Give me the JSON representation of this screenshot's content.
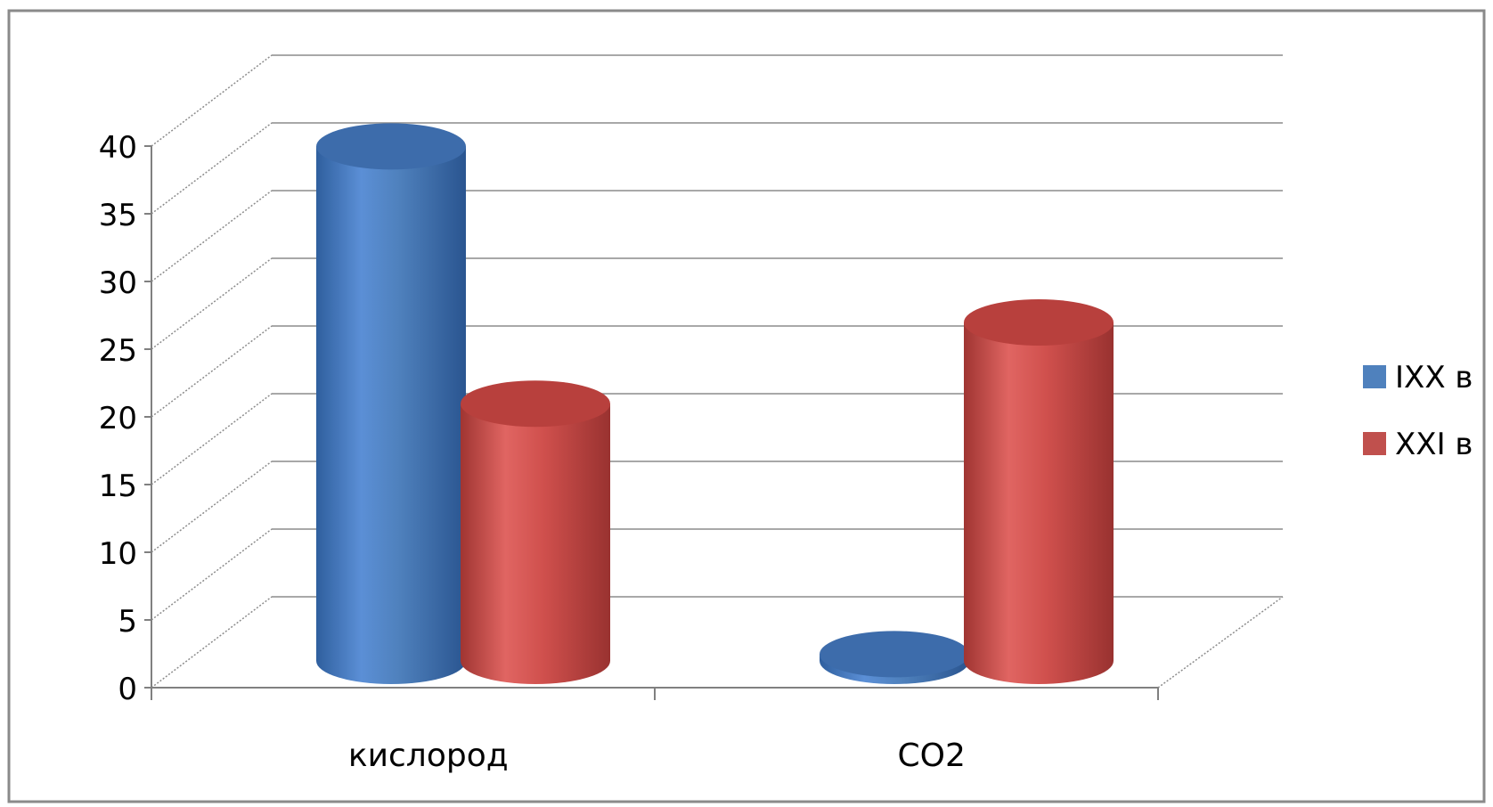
{
  "chart_data": {
    "type": "bar",
    "style": "3d-cylinder",
    "title": "",
    "xlabel": "",
    "ylabel": "",
    "categories": [
      "кислород",
      "CO2"
    ],
    "series": [
      {
        "name": "IXX в",
        "color": "#4f81bd",
        "values": [
          38,
          0.5
        ]
      },
      {
        "name": "XXI в",
        "color": "#c0504d",
        "values": [
          19,
          25
        ]
      }
    ],
    "ylim": [
      0,
      40
    ],
    "yticks": [
      "0",
      "5",
      "10",
      "15",
      "20",
      "25",
      "30",
      "35",
      "40"
    ],
    "grid": true,
    "legend": "right"
  }
}
